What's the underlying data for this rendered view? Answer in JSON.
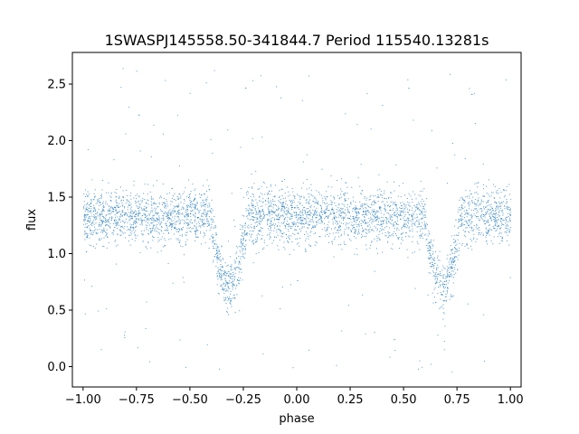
{
  "chart_data": {
    "type": "scatter",
    "title": "1SWASPJ145558.50-341844.7 Period 115540.13281s",
    "xlabel": "phase",
    "ylabel": "flux",
    "xlim": [
      -1.05,
      1.05
    ],
    "ylim": [
      -0.18,
      2.78
    ],
    "xticks": [
      -1.0,
      -0.75,
      -0.5,
      -0.25,
      0.0,
      0.25,
      0.5,
      0.75,
      1.0
    ],
    "xtick_labels": [
      "−1.00",
      "−0.75",
      "−0.50",
      "−0.25",
      "0.00",
      "0.25",
      "0.50",
      "0.75",
      "1.00"
    ],
    "yticks": [
      0.0,
      0.5,
      1.0,
      1.5,
      2.0,
      2.5
    ],
    "ytick_labels": [
      "0.0",
      "0.5",
      "1.0",
      "1.5",
      "2.0",
      "2.5"
    ],
    "grid": false,
    "legend": "none",
    "marker_color": "#1f77b4",
    "series": [
      {
        "x_range": [
          -1.0,
          1.0
        ],
        "light_curve_profile": {
          "baseline_flux": 1.33,
          "primary_eclipse": {
            "phase": -0.32,
            "min_flux": 0.72
          },
          "secondary_eclipse": {
            "phase": 0.68,
            "min_flux": 0.72
          },
          "scatter_std": 0.12,
          "outlier_range": [
            -0.05,
            2.65
          ]
        }
      }
    ]
  }
}
